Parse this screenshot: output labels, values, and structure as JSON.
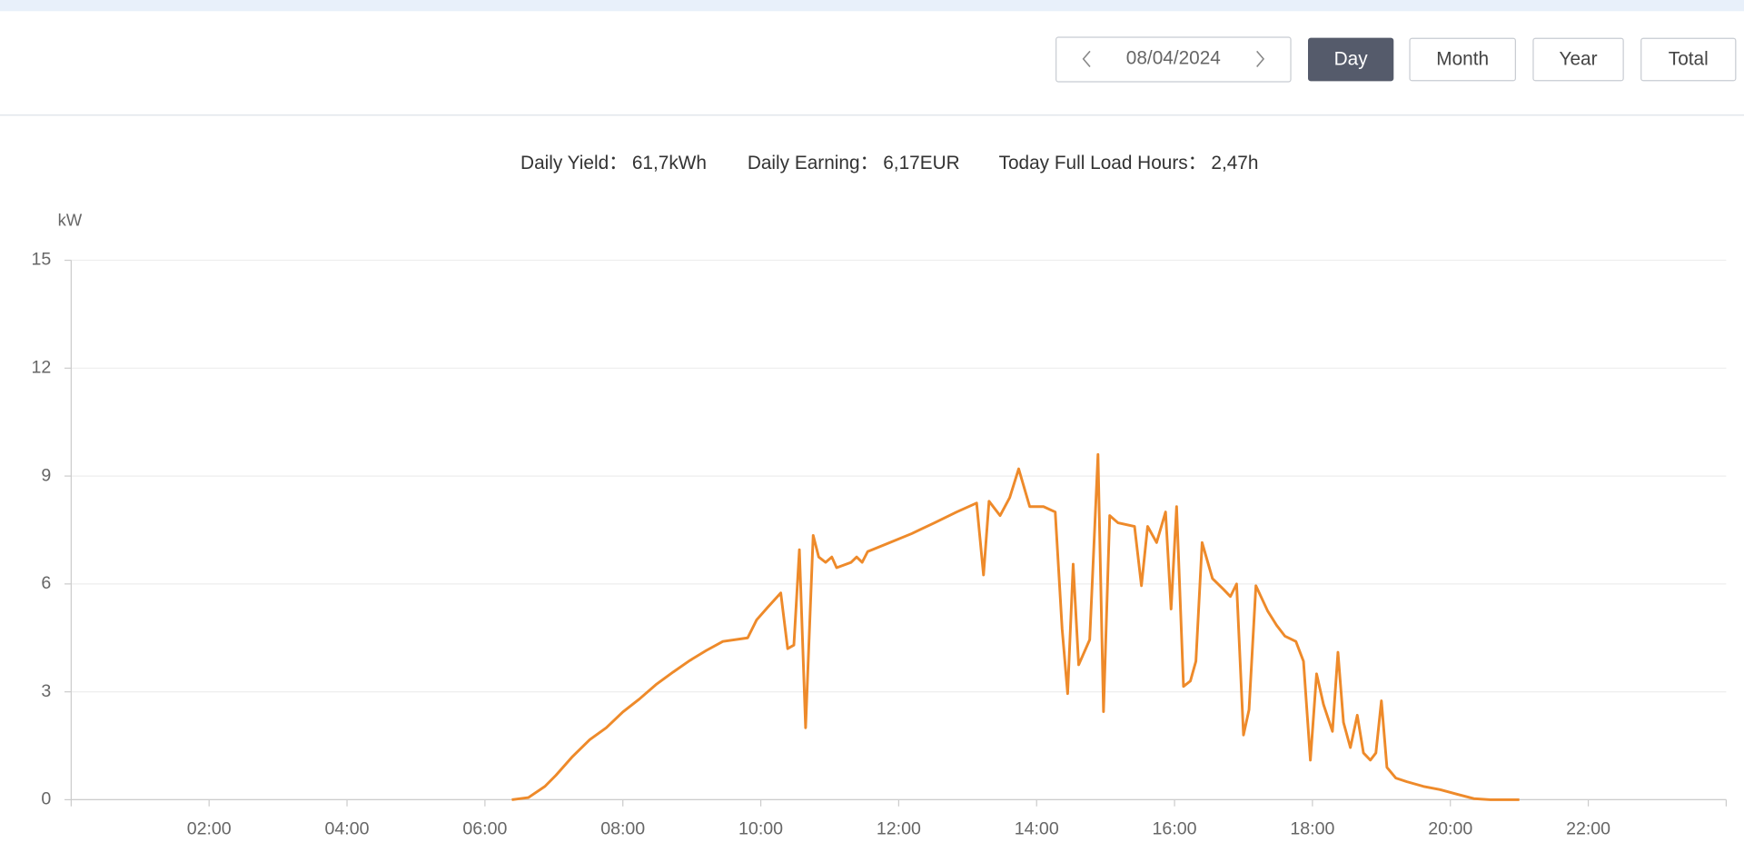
{
  "toolbar": {
    "date": "08/04/2024",
    "buttons": [
      "Day",
      "Month",
      "Year",
      "Total"
    ],
    "active": 0
  },
  "stats": [
    {
      "label": "Daily Yield：",
      "value": "61,7kWh"
    },
    {
      "label": "Daily Earning：",
      "value": "6,17EUR"
    },
    {
      "label": "Today Full Load Hours：",
      "value": "2,47h"
    }
  ],
  "chart_data": {
    "type": "line",
    "y_label": "kW",
    "color": "#ee8a2a",
    "grid": true,
    "x": [
      6.39,
      6.63,
      6.87,
      7.03,
      7.27,
      7.52,
      7.76,
      8.0,
      8.24,
      8.48,
      8.73,
      8.97,
      9.21,
      9.45,
      9.81,
      9.94,
      10.1,
      10.29,
      10.39,
      10.48,
      10.56,
      10.65,
      10.76,
      10.84,
      10.94,
      11.03,
      11.1,
      11.31,
      11.39,
      11.47,
      11.55,
      11.87,
      12.19,
      12.52,
      12.84,
      13.13,
      13.23,
      13.31,
      13.47,
      13.61,
      13.74,
      13.9,
      14.1,
      14.27,
      14.37,
      14.45,
      14.53,
      14.61,
      14.77,
      14.89,
      14.97,
      15.06,
      15.18,
      15.42,
      15.52,
      15.61,
      15.74,
      15.87,
      15.95,
      16.03,
      16.13,
      16.23,
      16.31,
      16.4,
      16.55,
      16.71,
      16.81,
      16.9,
      17.0,
      17.08,
      17.18,
      17.35,
      17.48,
      17.6,
      17.76,
      17.87,
      17.97,
      18.06,
      18.16,
      18.29,
      18.37,
      18.45,
      18.55,
      18.65,
      18.74,
      18.84,
      18.92,
      19.0,
      19.08,
      19.21,
      19.37,
      19.61,
      19.85,
      20.1,
      20.34,
      20.58,
      21.0
    ],
    "values": [
      0,
      0.06,
      0.37,
      0.68,
      1.2,
      1.67,
      2.0,
      2.44,
      2.8,
      3.2,
      3.55,
      3.87,
      4.15,
      4.4,
      4.5,
      5.0,
      5.35,
      5.75,
      4.2,
      4.3,
      6.95,
      2.0,
      7.35,
      6.75,
      6.6,
      6.75,
      6.45,
      6.6,
      6.75,
      6.6,
      6.9,
      7.15,
      7.4,
      7.7,
      8.0,
      8.25,
      6.25,
      8.3,
      7.9,
      8.4,
      9.2,
      8.15,
      8.15,
      8.0,
      4.75,
      2.95,
      6.55,
      3.75,
      4.45,
      9.6,
      2.45,
      7.9,
      7.7,
      7.6,
      5.95,
      7.6,
      7.15,
      8.0,
      5.3,
      8.15,
      3.15,
      3.3,
      3.85,
      7.15,
      6.15,
      5.85,
      5.65,
      6.0,
      1.8,
      2.5,
      5.95,
      5.25,
      4.85,
      4.55,
      4.4,
      3.85,
      1.1,
      3.5,
      2.65,
      1.9,
      4.1,
      2.15,
      1.45,
      2.35,
      1.3,
      1.1,
      1.3,
      2.75,
      0.9,
      0.6,
      0.5,
      0.37,
      0.28,
      0.15,
      0.03,
      0,
      0
    ],
    "xlim": [
      0,
      24
    ],
    "xticks": [
      {
        "value": 2,
        "label": "02:00"
      },
      {
        "value": 4,
        "label": "04:00"
      },
      {
        "value": 6,
        "label": "06:00"
      },
      {
        "value": 8,
        "label": "08:00"
      },
      {
        "value": 10,
        "label": "10:00"
      },
      {
        "value": 12,
        "label": "12:00"
      },
      {
        "value": 14,
        "label": "14:00"
      },
      {
        "value": 16,
        "label": "16:00"
      },
      {
        "value": 18,
        "label": "18:00"
      },
      {
        "value": 20,
        "label": "20:00"
      },
      {
        "value": 22,
        "label": "22:00"
      }
    ],
    "ylim": [
      0,
      15
    ],
    "yticks": [
      0,
      3,
      6,
      9,
      12,
      15
    ]
  }
}
